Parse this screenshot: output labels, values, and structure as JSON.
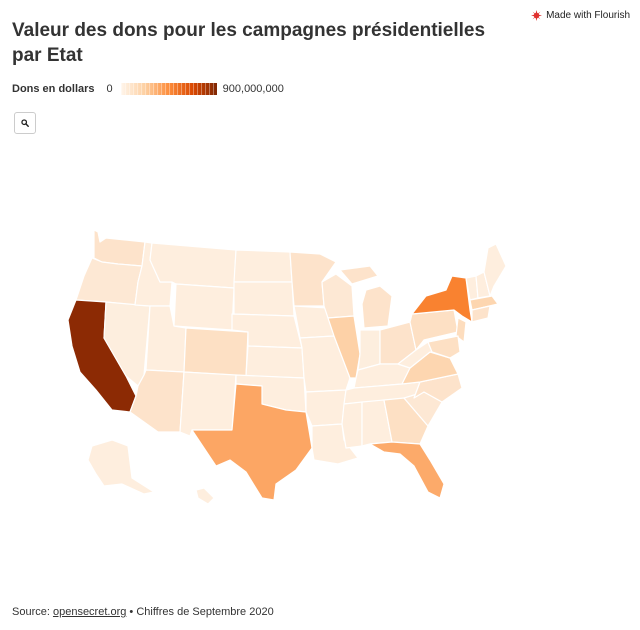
{
  "title": "Valeur des dons pour les campagnes présidentielles par Etat",
  "badge": {
    "label": "Made with Flourish",
    "icon": "flourish-logo-icon"
  },
  "legend": {
    "title": "Dons en dollars",
    "min_label": "0",
    "max_label": "900,000,000",
    "min": 0,
    "max": 900000000,
    "colors": [
      "#fff5eb",
      "#fdd0a2",
      "#fd8d3c",
      "#d94801",
      "#7f2704"
    ]
  },
  "zoom": {
    "icon": "search-icon"
  },
  "map": {
    "type": "choropleth",
    "region": "United States",
    "scale_note_unit": "USD",
    "colors": {
      "very_low": "#feeede",
      "low": "#fde3cb",
      "mid_low": "#fdd1a7",
      "mid": "#fca664",
      "high": "#f98230",
      "max": "#8c2a04"
    },
    "levels": {
      "California": 0.97,
      "New York": 0.58,
      "Texas": 0.38,
      "Florida": 0.33,
      "Illinois": 0.18,
      "Massachusetts": 0.17,
      "Virginia": 0.14,
      "Washington": 0.13,
      "Georgia": 0.12,
      "Pennsylvania": 0.11,
      "Colorado": 0.09,
      "Minnesota": 0.08,
      "Michigan": 0.08,
      "Ohio": 0.08,
      "New Jersey": 0.1,
      "Maryland": 0.09,
      "Arizona": 0.08,
      "North Carolina": 0.08,
      "Oregon": 0.07,
      "other": 0.04
    }
  },
  "footer": {
    "source_prefix": "Source: ",
    "source_link": "opensecret.org",
    "source_suffix": " • Chiffres de Septembre 2020"
  }
}
